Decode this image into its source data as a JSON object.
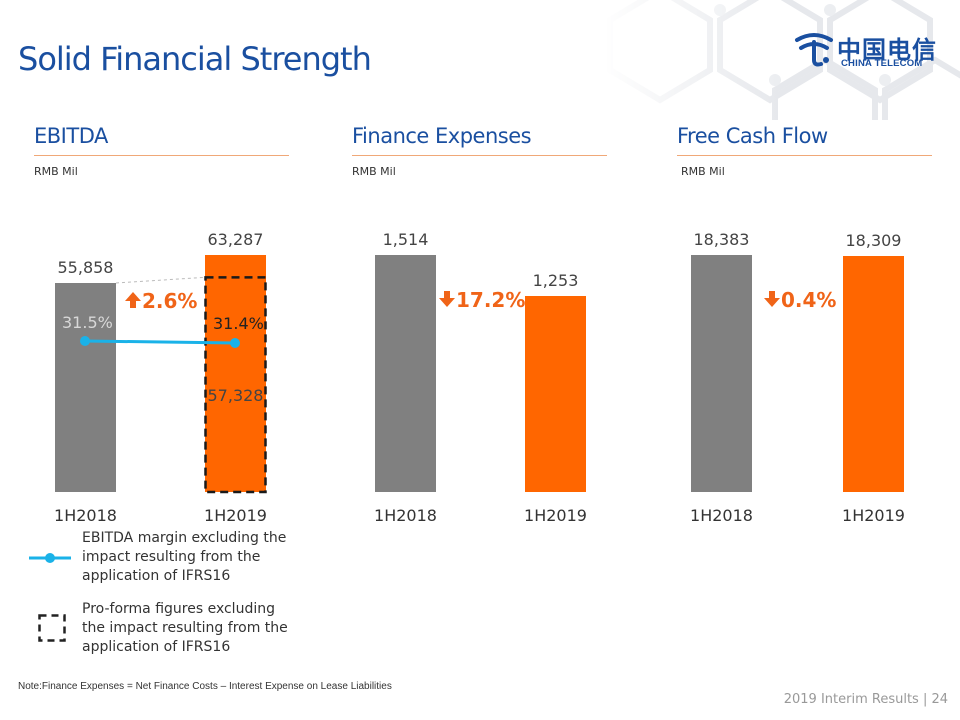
{
  "title": "Solid Financial Strength",
  "logo": {
    "cn": "中国电信",
    "en": "CHINA TELECOM"
  },
  "unit": "RMB Mil",
  "chart_data": [
    {
      "type": "bar",
      "title": "EBITDA",
      "unit": "RMB Mil",
      "categories": [
        "1H2018",
        "1H2019"
      ],
      "values": [
        55858,
        63287
      ],
      "value_labels": [
        "55,858",
        "63,287"
      ],
      "proforma": {
        "category": "1H2019",
        "value": 57328,
        "label": "57,328"
      },
      "margin_line": {
        "values": [
          31.5,
          31.4
        ],
        "labels": [
          "31.5%",
          "31.4%"
        ]
      },
      "change": {
        "direction": "up",
        "label": "2.6%"
      },
      "colors": [
        "#808080",
        "#ff6600"
      ]
    },
    {
      "type": "bar",
      "title": "Finance Expenses",
      "unit": "RMB Mil",
      "categories": [
        "1H2018",
        "1H2019"
      ],
      "values": [
        1514,
        1253
      ],
      "value_labels": [
        "1,514",
        "1,253"
      ],
      "change": {
        "direction": "down",
        "label": "17.2%"
      },
      "colors": [
        "#808080",
        "#ff6600"
      ]
    },
    {
      "type": "bar",
      "title": "Free Cash Flow",
      "unit": "RMB Mil",
      "categories": [
        "1H2018",
        "1H2019"
      ],
      "values": [
        18383,
        18309
      ],
      "value_labels": [
        "18,383",
        "18,309"
      ],
      "change": {
        "direction": "down",
        "label": "0.4%"
      },
      "colors": [
        "#808080",
        "#ff6600"
      ]
    }
  ],
  "legend": {
    "line": "EBITDA margin excluding the impact resulting from the application of IFRS16",
    "line_lines": [
      "EBITDA margin excluding the",
      "impact resulting from the",
      "application of IFRS16"
    ],
    "box": "Pro-forma figures excluding the impact resulting from the application of IFRS16",
    "box_lines": [
      "Pro-forma figures excluding",
      "the impact resulting from the",
      "application of IFRS16"
    ]
  },
  "note": "Note:Finance Expenses = Net Finance Costs – Interest Expense on Lease Liabilities",
  "footer": "2019 Interim Results | 24",
  "colors": {
    "title_blue": "#1a4fa0",
    "accent_orange": "#f06418",
    "line_cyan": "#1ab2e8",
    "bar_gray": "#808080",
    "bar_orange": "#ff6600"
  }
}
